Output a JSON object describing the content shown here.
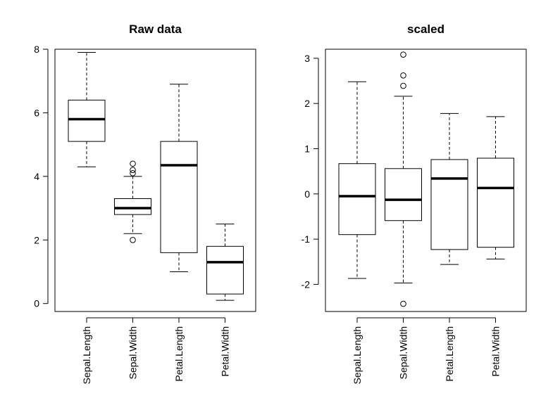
{
  "chart_data": [
    {
      "type": "boxplot",
      "title": "Raw data",
      "xlabel": "",
      "ylabel": "",
      "ylim": [
        -0.25,
        8.0
      ],
      "yticks": [
        0,
        2,
        4,
        6,
        8
      ],
      "categories": [
        "Sepal.Length",
        "Sepal.Width",
        "Petal.Length",
        "Petal.Width"
      ],
      "boxes": [
        {
          "whisker_low": 4.3,
          "q1": 5.1,
          "median": 5.8,
          "q3": 6.4,
          "whisker_high": 7.9,
          "outliers": []
        },
        {
          "whisker_low": 2.2,
          "q1": 2.8,
          "median": 3.0,
          "q3": 3.3,
          "whisker_high": 4.0,
          "outliers": [
            2.0,
            4.1,
            4.2,
            4.4
          ]
        },
        {
          "whisker_low": 1.0,
          "q1": 1.6,
          "median": 4.35,
          "q3": 5.1,
          "whisker_high": 6.9,
          "outliers": []
        },
        {
          "whisker_low": 0.1,
          "q1": 0.3,
          "median": 1.3,
          "q3": 1.8,
          "whisker_high": 2.5,
          "outliers": []
        }
      ]
    },
    {
      "type": "boxplot",
      "title": "scaled",
      "xlabel": "",
      "ylabel": "",
      "ylim": [
        -2.6,
        3.2
      ],
      "yticks": [
        -2,
        -1,
        0,
        1,
        2,
        3
      ],
      "categories": [
        "Sepal.Length",
        "Sepal.Width",
        "Petal.Length",
        "Petal.Width"
      ],
      "boxes": [
        {
          "whisker_low": -1.87,
          "q1": -0.9,
          "median": -0.05,
          "q3": 0.67,
          "whisker_high": 2.48,
          "outliers": []
        },
        {
          "whisker_low": -1.97,
          "q1": -0.59,
          "median": -0.13,
          "q3": 0.56,
          "whisker_high": 2.16,
          "outliers": [
            -2.43,
            2.39,
            2.62,
            3.08
          ]
        },
        {
          "whisker_low": -1.56,
          "q1": -1.23,
          "median": 0.34,
          "q3": 0.76,
          "whisker_high": 1.78,
          "outliers": []
        },
        {
          "whisker_low": -1.44,
          "q1": -1.18,
          "median": 0.13,
          "q3": 0.79,
          "whisker_high": 1.71,
          "outliers": []
        }
      ]
    }
  ]
}
